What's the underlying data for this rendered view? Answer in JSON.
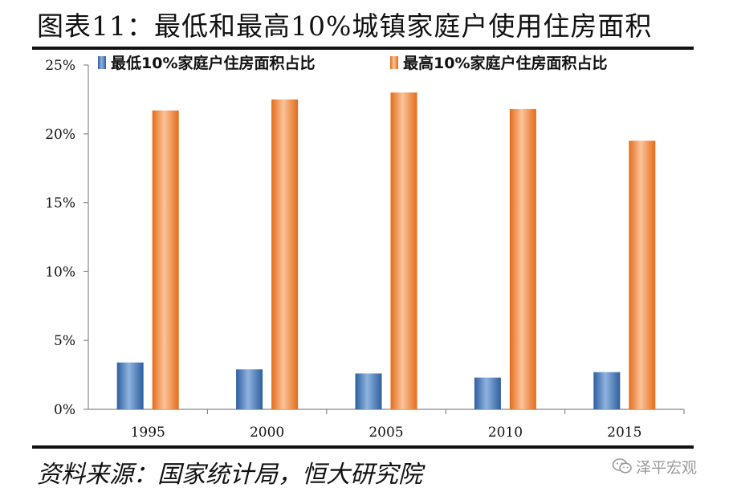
{
  "header": {
    "title": "图表11：最低和最高10%城镇家庭户使用住房面积"
  },
  "footer": {
    "source": "资料来源：国家统计局，恒大研究院",
    "watermark_text": "泽平宏观",
    "watermark_icon": "wechat-icon"
  },
  "colors": {
    "low_series": "#4a7ebb",
    "high_series": "#f79646",
    "axis": "#888888",
    "text": "#111111"
  },
  "chart_data": {
    "type": "bar",
    "title": "",
    "xlabel": "",
    "ylabel": "",
    "categories": [
      "1995",
      "2000",
      "2005",
      "2010",
      "2015"
    ],
    "series": [
      {
        "name": "最低10%家庭户住房面积占比",
        "values": [
          3.4,
          2.9,
          2.6,
          2.3,
          2.7
        ]
      },
      {
        "name": "最高10%家庭户住房面积占比",
        "values": [
          21.7,
          22.5,
          23.0,
          21.8,
          19.5
        ]
      }
    ],
    "ylim": [
      0,
      25
    ],
    "yticks": [
      0,
      5,
      10,
      15,
      20,
      25
    ],
    "ytick_labels": [
      "0%",
      "5%",
      "10%",
      "15%",
      "20%",
      "25%"
    ],
    "grid": false,
    "legend_position": "top"
  }
}
